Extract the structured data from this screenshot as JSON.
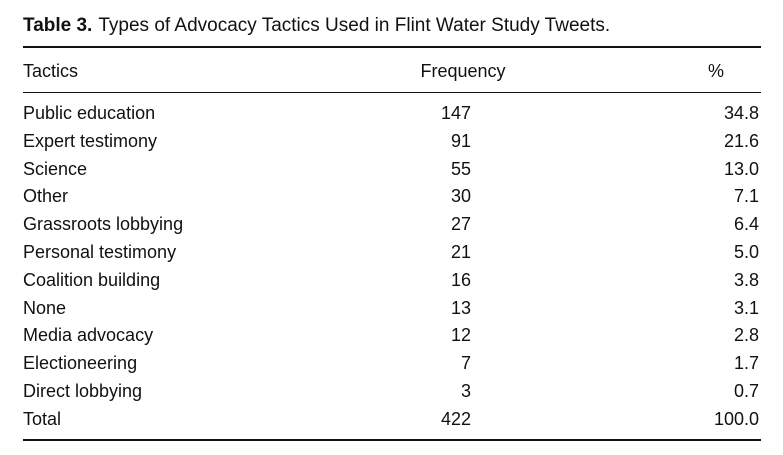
{
  "caption": {
    "label": "Table 3.",
    "title": "Types of Advocacy Tactics Used in Flint Water Study Tweets."
  },
  "table": {
    "headers": {
      "tactics": "Tactics",
      "frequency": "Frequency",
      "percent": "%"
    },
    "rows": [
      {
        "tactic": "Public education",
        "frequency": "147",
        "percent": "34.8"
      },
      {
        "tactic": "Expert testimony",
        "frequency": "91",
        "percent": "21.6"
      },
      {
        "tactic": "Science",
        "frequency": "55",
        "percent": "13.0"
      },
      {
        "tactic": "Other",
        "frequency": "30",
        "percent": "7.1"
      },
      {
        "tactic": "Grassroots lobbying",
        "frequency": "27",
        "percent": "6.4"
      },
      {
        "tactic": "Personal testimony",
        "frequency": "21",
        "percent": "5.0"
      },
      {
        "tactic": "Coalition building",
        "frequency": "16",
        "percent": "3.8"
      },
      {
        "tactic": "None",
        "frequency": "13",
        "percent": "3.1"
      },
      {
        "tactic": "Media advocacy",
        "frequency": "12",
        "percent": "2.8"
      },
      {
        "tactic": "Electioneering",
        "frequency": "7",
        "percent": "1.7"
      },
      {
        "tactic": "Direct lobbying",
        "frequency": "3",
        "percent": "0.7"
      },
      {
        "tactic": "Total",
        "frequency": "422",
        "percent": "100.0"
      }
    ]
  }
}
